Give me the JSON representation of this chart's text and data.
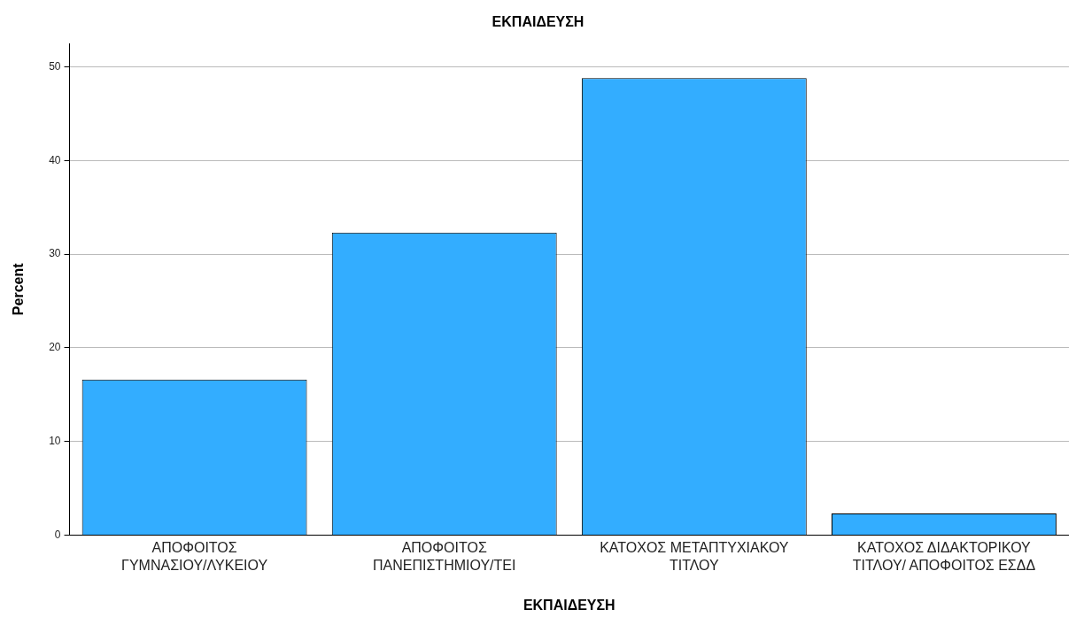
{
  "chart_data": {
    "type": "bar",
    "title": "ΕΚΠΑΙΔΕΥΣΗ",
    "xlabel": "ΕΚΠΑΙΔΕΥΣΗ",
    "ylabel": "Percent",
    "categories": [
      "ΑΠΟΦΟΙΤΟΣ ΓΥΜΝΑΣΙΟΥ/ΛΥΚΕΙΟΥ",
      "ΑΠΟΦΟΙΤΟΣ ΠΑΝΕΠΙΣΤΗΜΙΟΥ/ΤΕΙ",
      "ΚΑΤΟΧΟΣ ΜΕΤΑΠΤΥΧΙΑΚΟΥ ΤΙΤΛΟΥ",
      "ΚΑΤΟΧΟΣ ΔΙΔΑΚΤΟΡΙΚΟΥ ΤΙΤΛΟΥ/ ΑΠΟΦΟΙΤΟΣ ΕΣΔΔ"
    ],
    "values": [
      16.6,
      32.3,
      48.8,
      2.3
    ],
    "color": "#33adff",
    "ylim": [
      0,
      52.5
    ],
    "yticks": [
      0,
      10,
      20,
      30,
      40,
      50
    ],
    "grid": "y",
    "legend": false
  }
}
